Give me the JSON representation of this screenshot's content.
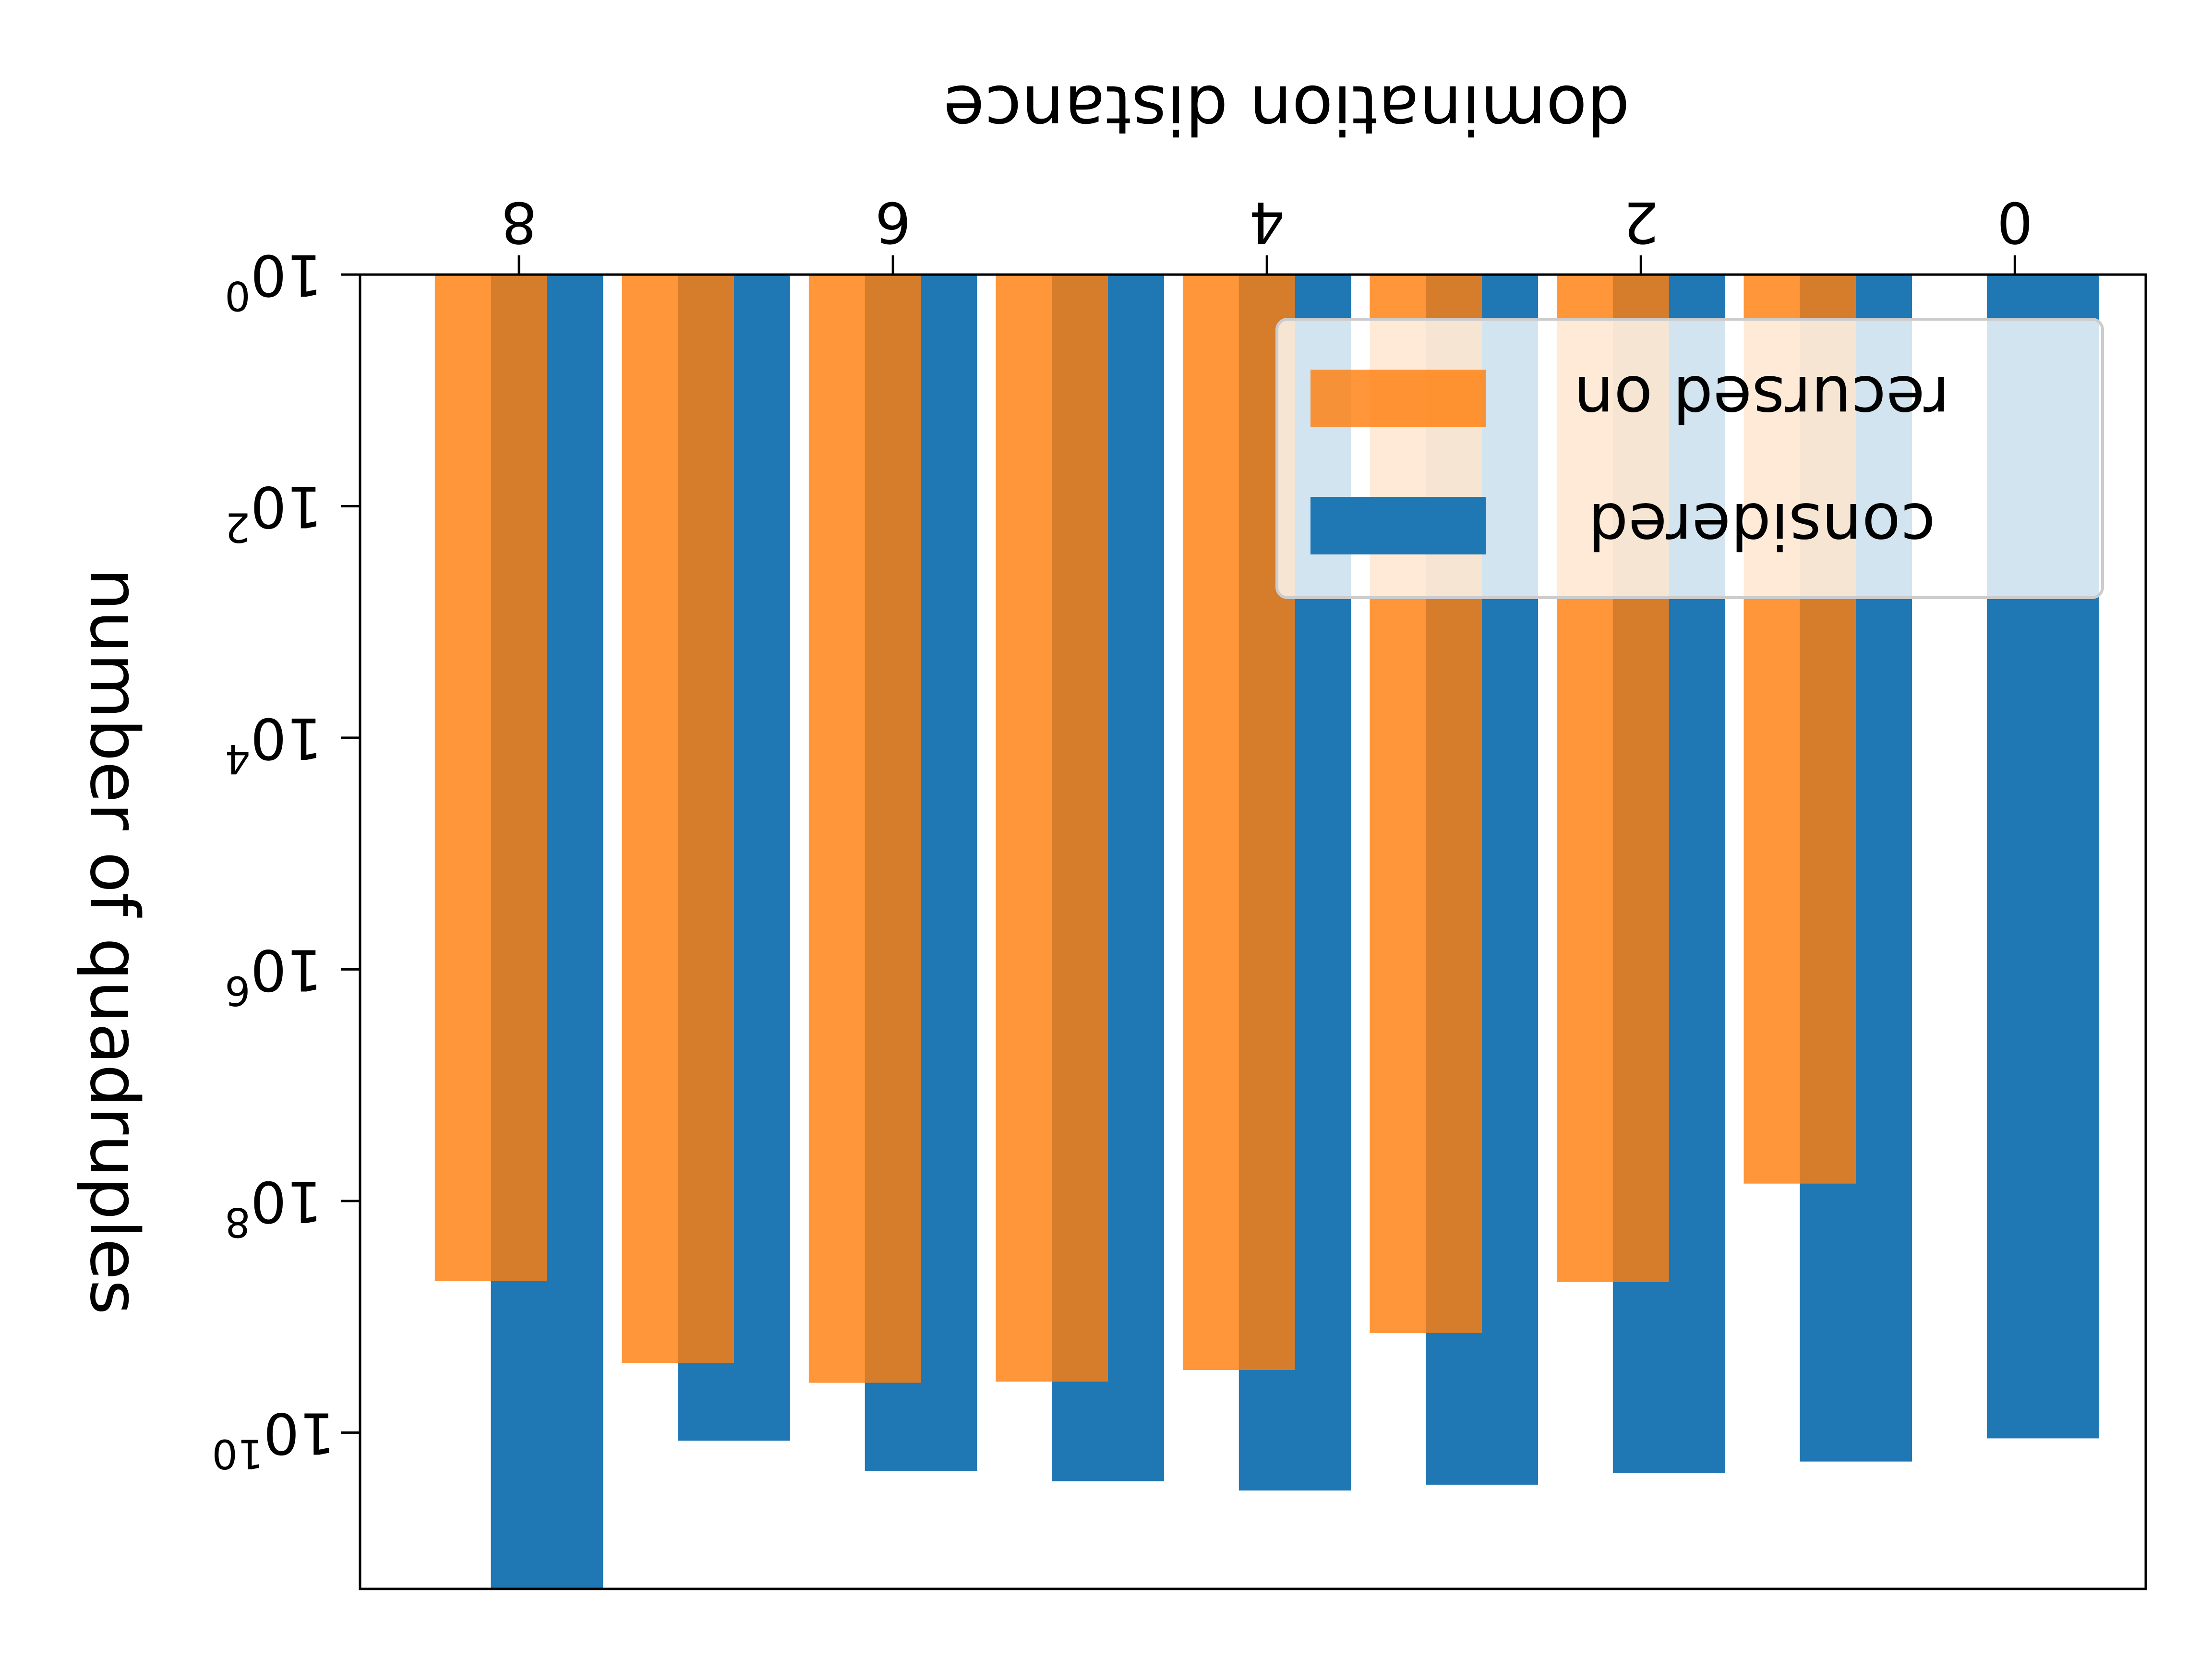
{
  "chart_data": {
    "type": "bar",
    "orientation_note": "rendered image is rotated 180 degrees",
    "xlabel": "domination distance",
    "ylabel": "number of quadruples",
    "x_ticks": [
      0,
      2,
      4,
      6,
      8
    ],
    "y_scale": "log",
    "y_ticks": [
      {
        "base": "10",
        "exp": "0",
        "value": 1
      },
      {
        "base": "10",
        "exp": "2",
        "value": 100
      },
      {
        "base": "10",
        "exp": "4",
        "value": 10000
      },
      {
        "base": "10",
        "exp": "6",
        "value": 1000000
      },
      {
        "base": "10",
        "exp": "8",
        "value": 100000000
      },
      {
        "base": "10",
        "exp": "10",
        "value": 10000000000
      }
    ],
    "x": [
      0,
      1,
      2,
      3,
      4,
      5,
      6,
      7,
      8
    ],
    "xlim": [
      -0.7,
      8.85
    ],
    "ylim_log10": [
      0,
      11.35
    ],
    "series": [
      {
        "name": "considered",
        "color": "#1f77b4",
        "log10_values": [
          10.05,
          10.25,
          10.35,
          10.45,
          10.5,
          10.42,
          10.33,
          10.07,
          11.35
        ]
      },
      {
        "name": "recursed on",
        "color": "#ff7f0e",
        "log10_values": [
          null,
          7.85,
          8.7,
          9.14,
          9.46,
          9.56,
          9.57,
          9.4,
          8.69
        ]
      }
    ],
    "legend": {
      "position": "top-right",
      "entries": [
        "recursed on",
        "considered"
      ]
    }
  }
}
